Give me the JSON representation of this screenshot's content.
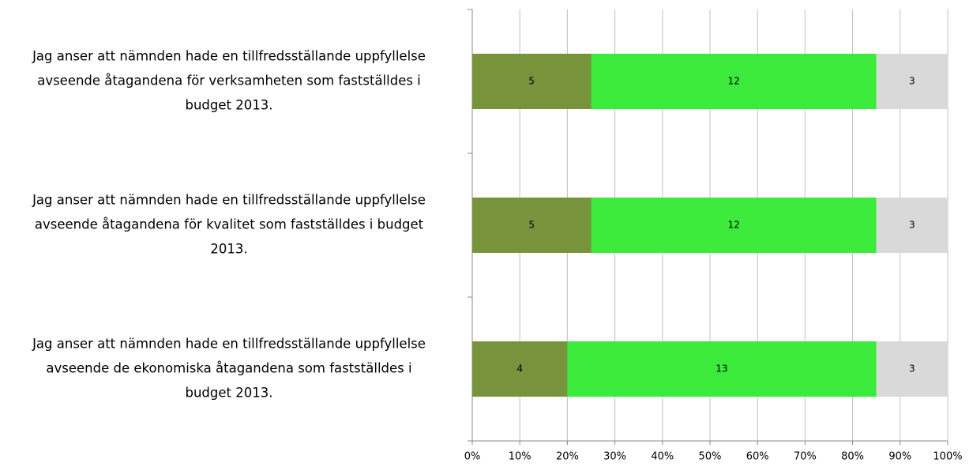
{
  "chart_data": {
    "type": "bar",
    "orientation": "horizontal",
    "stacking": "percent",
    "categories": [
      [
        "Jag anser att nämnden hade en tillfredsställande uppfyllelse",
        "avseende åtagandena för verksamheten som fastställdes i",
        "budget 2013."
      ],
      [
        "Jag anser att nämnden hade en tillfredsställande uppfyllelse",
        "avseende åtagandena för kvalitet som fastställdes i budget",
        "2013."
      ],
      [
        "Jag anser att nämnden hade en tillfredsställande uppfyllelse",
        "avseende de ekonomiska åtagandena som fastställdes i",
        "budget 2013."
      ]
    ],
    "series": [
      {
        "color": "#77933c",
        "values": [
          5,
          5,
          4
        ]
      },
      {
        "color": "#3bea3b",
        "values": [
          12,
          12,
          13
        ]
      },
      {
        "color": "#d9d9d9",
        "values": [
          3,
          3,
          3
        ]
      }
    ],
    "xlim": [
      0,
      100
    ],
    "xticks": [
      {
        "value": 0,
        "label": "0%"
      },
      {
        "value": 10,
        "label": "10%"
      },
      {
        "value": 20,
        "label": "20%"
      },
      {
        "value": 30,
        "label": "30%"
      },
      {
        "value": 40,
        "label": "40%"
      },
      {
        "value": 50,
        "label": "50%"
      },
      {
        "value": 60,
        "label": "60%"
      },
      {
        "value": 70,
        "label": "70%"
      },
      {
        "value": 80,
        "label": "80%"
      },
      {
        "value": 90,
        "label": "90%"
      },
      {
        "value": 100,
        "label": "100%"
      }
    ],
    "grid": true
  }
}
